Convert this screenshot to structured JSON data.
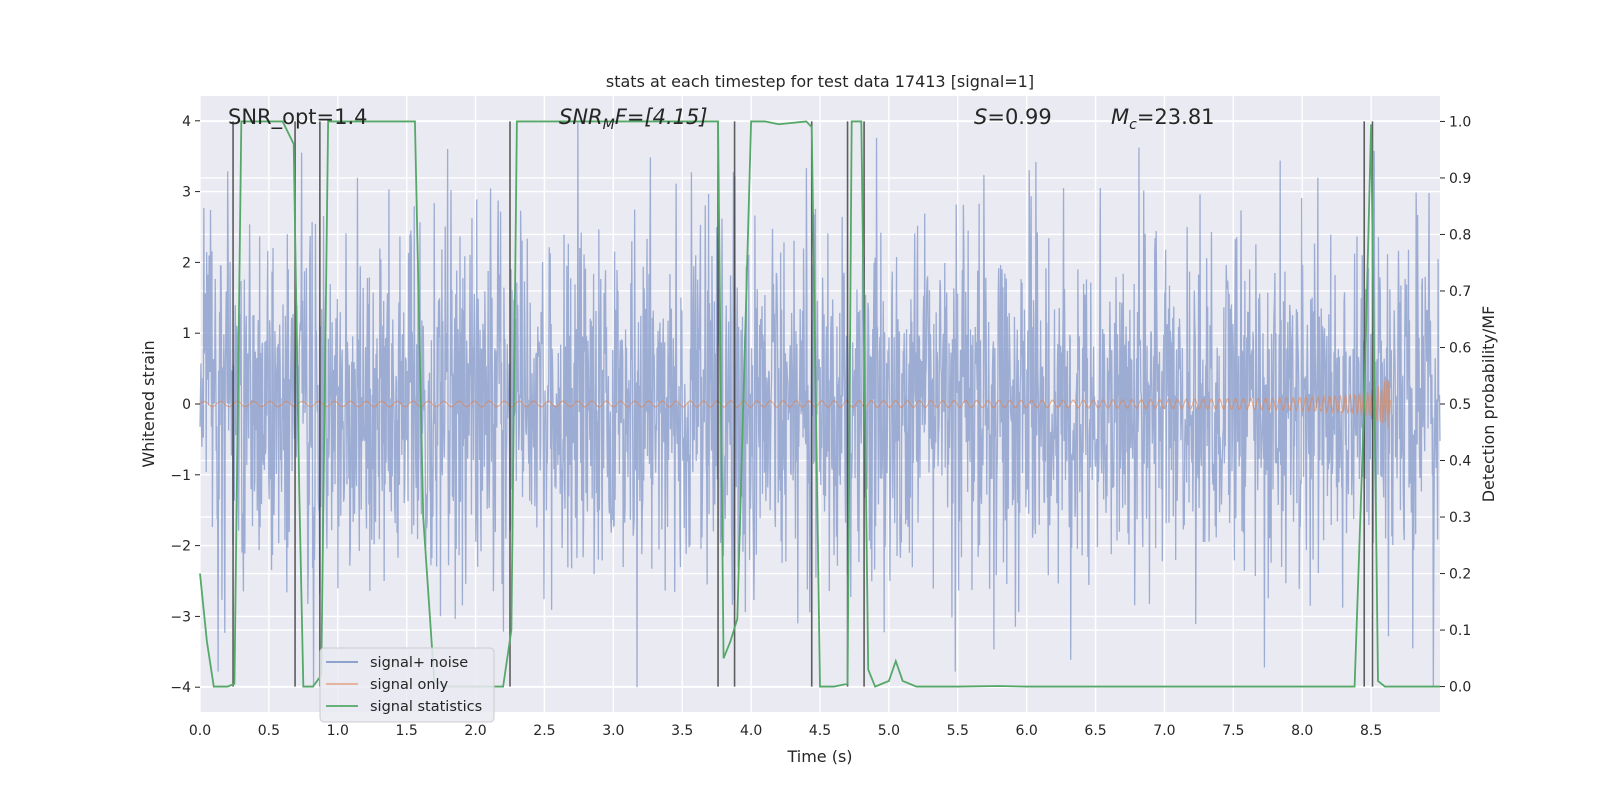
{
  "chart_data": {
    "type": "line",
    "title": "stats at each timestep for test data 17413 [signal=1]",
    "xlabel": "Time (s)",
    "ylabel": "Whitened strain",
    "ylabel_right": "Detection probability/MF",
    "xlim": [
      0,
      9.0
    ],
    "ylim": [
      -4.35,
      4.35
    ],
    "ylim_right": [
      -0.045,
      1.045
    ],
    "x_ticks": [
      0.0,
      0.5,
      1.0,
      1.5,
      2.0,
      2.5,
      3.0,
      3.5,
      4.0,
      4.5,
      5.0,
      5.5,
      6.0,
      6.5,
      7.0,
      7.5,
      8.0,
      8.5
    ],
    "x_tick_labels": [
      "0.0",
      "0.5",
      "1.0",
      "1.5",
      "2.0",
      "2.5",
      "3.0",
      "3.5",
      "4.0",
      "4.5",
      "5.0",
      "5.5",
      "6.0",
      "6.5",
      "7.0",
      "7.5",
      "8.0",
      "8.5"
    ],
    "y_ticks": [
      -4,
      -3,
      -2,
      -1,
      0,
      1,
      2,
      3,
      4
    ],
    "y_tick_labels": [
      "−4",
      "−3",
      "−2",
      "−1",
      "0",
      "1",
      "2",
      "3",
      "4"
    ],
    "y_right_ticks": [
      0.0,
      0.1,
      0.2,
      0.3,
      0.4,
      0.5,
      0.6,
      0.7,
      0.8,
      0.9,
      1.0
    ],
    "y_right_tick_labels": [
      "0.0",
      "0.1",
      "0.2",
      "0.3",
      "0.4",
      "0.5",
      "0.6",
      "0.7",
      "0.8",
      "0.9",
      "1.0"
    ],
    "grid": true,
    "legend_position": "lower-left",
    "legend": [
      "signal+ noise",
      "signal only",
      "signal statistics"
    ],
    "colors": {
      "noise": "#8197c8",
      "signal": "#dd8452",
      "stats": "#55a868",
      "vline": "#3a3a3a",
      "plot_bg": "#eaeaf2",
      "grid": "#ffffff"
    },
    "annotations": {
      "snr_opt": "SNR_opt=1.4",
      "snr_mf_prefix": "SNR",
      "snr_mf_sub": "M",
      "snr_mf_suffix": "F=[4.15]",
      "s_label": "S",
      "s_value": "=0.99",
      "mc_label": "M",
      "mc_sub": "c",
      "mc_value": "=23.81"
    },
    "series": [
      {
        "name": "signal statistics",
        "axis": "right",
        "x": [
          0.0,
          0.05,
          0.1,
          0.2,
          0.25,
          0.3,
          0.4,
          0.6,
          0.68,
          0.72,
          0.75,
          0.82,
          0.88,
          0.93,
          1.0,
          1.3,
          1.56,
          1.62,
          1.7,
          1.8,
          2.0,
          2.1,
          2.2,
          2.26,
          2.3,
          2.5,
          3.0,
          3.76,
          3.8,
          3.85,
          3.9,
          4.0,
          4.1,
          4.2,
          4.4,
          4.44,
          4.5,
          4.6,
          4.7,
          4.73,
          4.8,
          4.85,
          4.9,
          4.95,
          5.0,
          5.05,
          5.1,
          5.2,
          5.5,
          5.8,
          6.0,
          6.5,
          7.0,
          7.5,
          8.0,
          8.38,
          8.45,
          8.5,
          8.55,
          8.6,
          8.7,
          8.8,
          9.0
        ],
        "y": [
          0.2,
          0.08,
          0.0,
          0.0,
          0.005,
          1.0,
          1.0,
          1.0,
          0.96,
          0.35,
          0.0,
          0.0,
          0.02,
          1.0,
          1.0,
          1.0,
          1.0,
          0.3,
          0.01,
          0.0,
          0.0,
          0.0,
          0.0,
          0.1,
          1.0,
          1.0,
          1.0,
          1.0,
          0.05,
          0.08,
          0.12,
          1.0,
          1.0,
          0.995,
          1.0,
          0.99,
          0.0,
          0.0,
          0.005,
          1.0,
          1.0,
          0.03,
          0.0,
          0.005,
          0.01,
          0.045,
          0.01,
          0.0,
          0.0,
          0.001,
          0.0,
          0.0,
          0.0,
          0.0,
          0.0,
          0.0,
          0.5,
          0.995,
          0.01,
          0.0,
          0.0,
          0.0,
          0.0
        ]
      },
      {
        "name": "signal+ noise",
        "axis": "left",
        "description": "dense whitened strain time series, values mostly within −2 to 2 with peaks near ±4"
      },
      {
        "name": "signal only",
        "axis": "left",
        "description": "small chirp near 0 growing to about ±0.35 around t=8.5 s"
      }
    ],
    "vertical_lines_x": [
      0.24,
      0.69,
      0.87,
      2.25,
      3.76,
      3.88,
      4.44,
      4.7,
      4.82,
      8.45,
      8.51
    ]
  }
}
